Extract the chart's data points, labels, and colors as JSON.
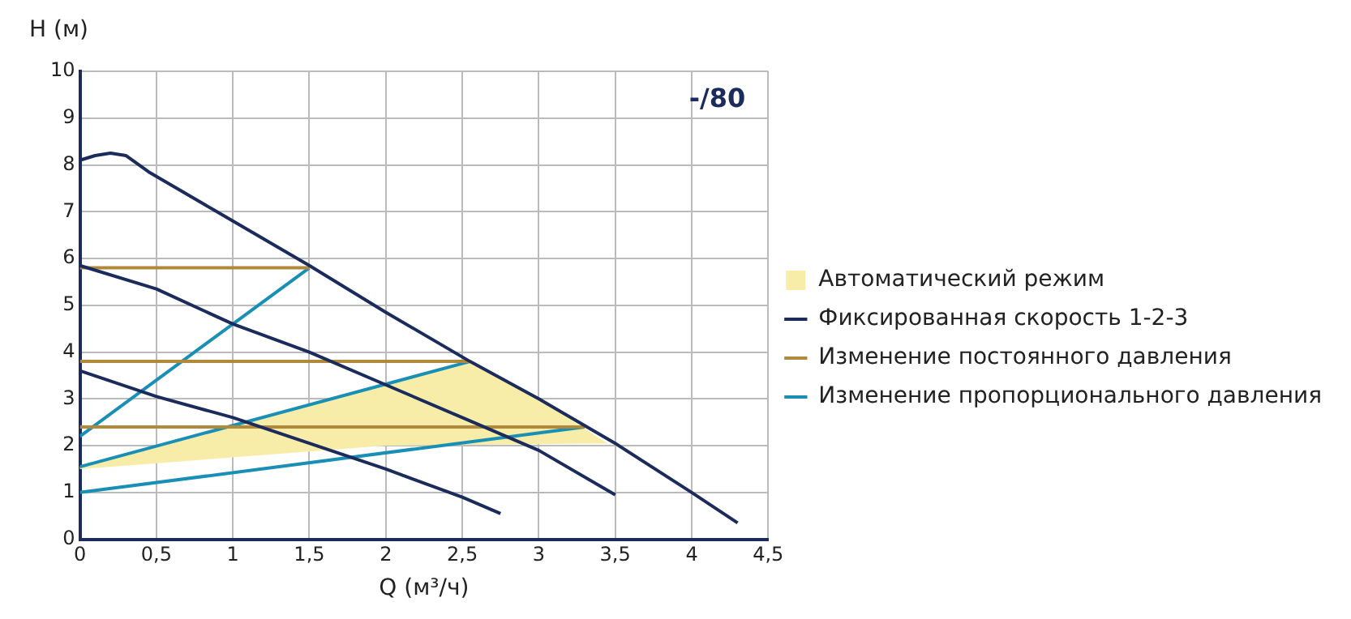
{
  "chart_data": {
    "type": "line",
    "xlabel": "Q (м³/ч)",
    "ylabel": "H (м)",
    "annotations": [
      "-/80"
    ],
    "xlim": [
      0,
      4.5
    ],
    "ylim": [
      0,
      10
    ],
    "xticks": [
      0,
      {
        "value": 0.5,
        "label": "0,5"
      },
      1,
      {
        "value": 1.5,
        "label": "1,5"
      },
      2,
      {
        "value": 2.5,
        "label": "2,5"
      },
      3,
      {
        "value": 3.5,
        "label": "3,5"
      },
      4,
      {
        "value": 4.5,
        "label": "4,5"
      }
    ],
    "yticks": [
      0,
      1,
      2,
      3,
      4,
      5,
      6,
      7,
      8,
      9,
      10
    ],
    "grid": true,
    "legend": "right",
    "marker": "none",
    "series": [
      {
        "type": "area",
        "name": "Автоматический режим",
        "color": "#f7eda8",
        "x": [
          0,
          2.55,
          3.0,
          3.45,
          2.0,
          0
        ],
        "values": [
          1.55,
          3.8,
          3.0,
          2.05,
          2.0,
          1.5
        ]
      },
      {
        "name": "Фиксированная скорость 1-2-3",
        "color": "#1b2b5c",
        "x": [
          0,
          0.1,
          0.2,
          0.3,
          0.45,
          1,
          1.5,
          2,
          2.55,
          3,
          3.5,
          4,
          4.3
        ],
        "values": [
          8.1,
          8.2,
          8.25,
          8.2,
          7.85,
          6.8,
          5.85,
          4.85,
          3.8,
          3.0,
          2.05,
          1.0,
          0.35
        ]
      },
      {
        "color": "#1b2b5c",
        "x": [
          0,
          0.5,
          1,
          1.5,
          2,
          2.5,
          3,
          3.5
        ],
        "values": [
          5.85,
          5.35,
          4.6,
          4.0,
          3.3,
          2.6,
          1.9,
          0.95
        ]
      },
      {
        "color": "#1b2b5c",
        "x": [
          0,
          0.5,
          1,
          1.5,
          2,
          2.5,
          2.75
        ],
        "values": [
          3.6,
          3.05,
          2.6,
          2.05,
          1.5,
          0.9,
          0.55
        ]
      },
      {
        "name": "Изменение постоянного давления",
        "color": "#b08a3a",
        "x": [
          0,
          1.5
        ],
        "values": [
          5.8,
          5.8
        ]
      },
      {
        "color": "#b08a3a",
        "x": [
          0,
          2.55
        ],
        "values": [
          3.8,
          3.8
        ]
      },
      {
        "color": "#b08a3a",
        "x": [
          0,
          3.3
        ],
        "values": [
          2.4,
          2.4
        ]
      },
      {
        "name": "Изменение пропорционального давления",
        "color": "#1a8fb5",
        "x": [
          0,
          1.5
        ],
        "values": [
          2.2,
          5.8
        ]
      },
      {
        "color": "#1a8fb5",
        "x": [
          0,
          2.55
        ],
        "values": [
          1.55,
          3.8
        ]
      },
      {
        "color": "#1a8fb5",
        "x": [
          0,
          3.3
        ],
        "values": [
          1.0,
          2.4
        ]
      }
    ]
  }
}
